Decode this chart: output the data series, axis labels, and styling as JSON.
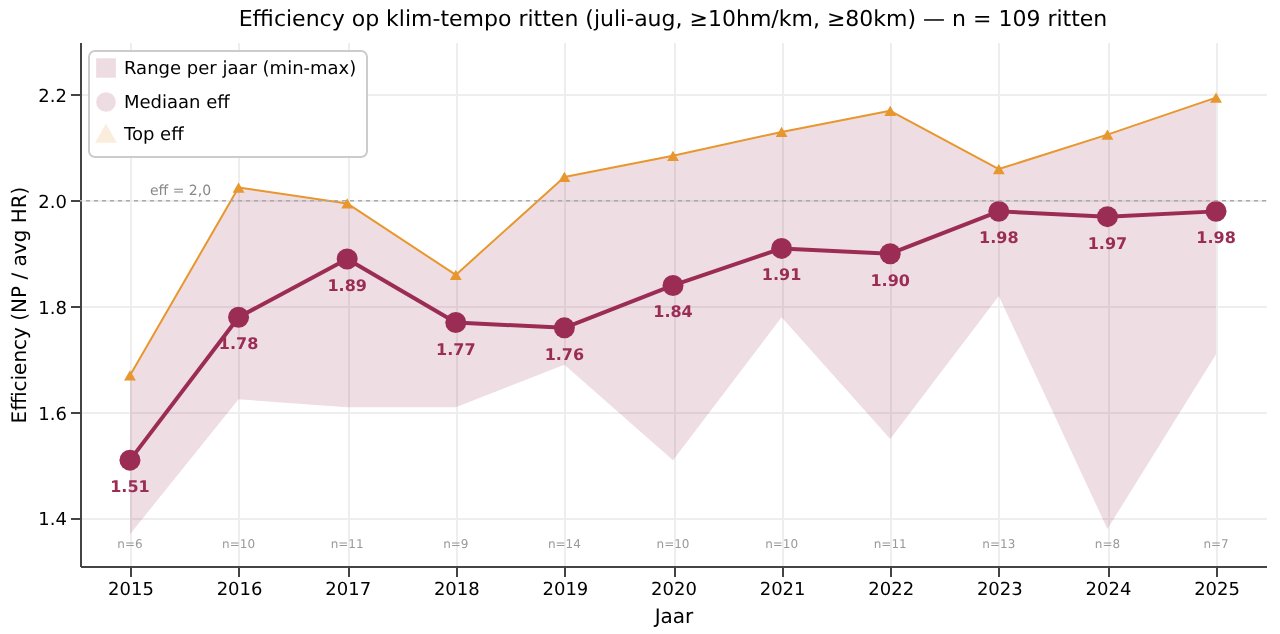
{
  "chart_data": {
    "type": "line",
    "title": "Efficiency op klim-tempo ritten (juli-aug, ≥10hm/km, ≥80km) — n = 109 ritten",
    "xlabel": "Jaar",
    "ylabel": "Efficiency (NP / avg HR)",
    "categories": [
      "2015",
      "2016",
      "2017",
      "2018",
      "2019",
      "2020",
      "2021",
      "2022",
      "2023",
      "2024",
      "2025"
    ],
    "series": [
      {
        "name": "Range per jaar (min-max)",
        "type": "area",
        "color": "#9b2d55",
        "values": [
          null,
          null,
          null,
          null,
          null,
          null,
          null,
          null,
          null,
          null,
          null
        ],
        "lower": [
          1.37,
          1.625,
          1.61,
          1.61,
          1.69,
          1.51,
          1.78,
          1.55,
          1.82,
          1.38,
          1.71
        ],
        "upper": [
          1.67,
          2.025,
          1.995,
          1.86,
          2.045,
          2.085,
          2.13,
          2.17,
          2.06,
          2.125,
          2.195
        ]
      },
      {
        "name": "Mediaan eff",
        "color": "#9b2d55",
        "marker": "circle",
        "values": [
          1.51,
          1.78,
          1.89,
          1.77,
          1.76,
          1.84,
          1.91,
          1.9,
          1.98,
          1.97,
          1.98
        ],
        "value_labels": [
          "1.51",
          "1.78",
          "1.89",
          "1.77",
          "1.76",
          "1.84",
          "1.91",
          "1.90",
          "1.98",
          "1.97",
          "1.98"
        ]
      },
      {
        "name": "Top eff",
        "color": "#e8962e",
        "marker": "triangle",
        "values": [
          1.67,
          2.025,
          1.995,
          1.86,
          2.045,
          2.085,
          2.13,
          2.17,
          2.06,
          2.125,
          2.195
        ]
      }
    ],
    "ylim": [
      1.31,
      2.3
    ],
    "yticks": [
      1.4,
      1.6,
      1.8,
      {
        "value": 2,
        "label": "2.0"
      },
      2.2
    ],
    "grid": true,
    "legend": "top left",
    "ref_lines": [
      {
        "axis": "y",
        "value": 2,
        "label": "eff = 2,0",
        "line_style": "dotted",
        "color": "#aaaaaa"
      }
    ],
    "annotations": [
      "n=6",
      "n=10",
      "n=11",
      "n=9",
      "n=14",
      "n=10",
      "n=10",
      "n=11",
      "n=13",
      "n=8",
      "n=7"
    ]
  }
}
